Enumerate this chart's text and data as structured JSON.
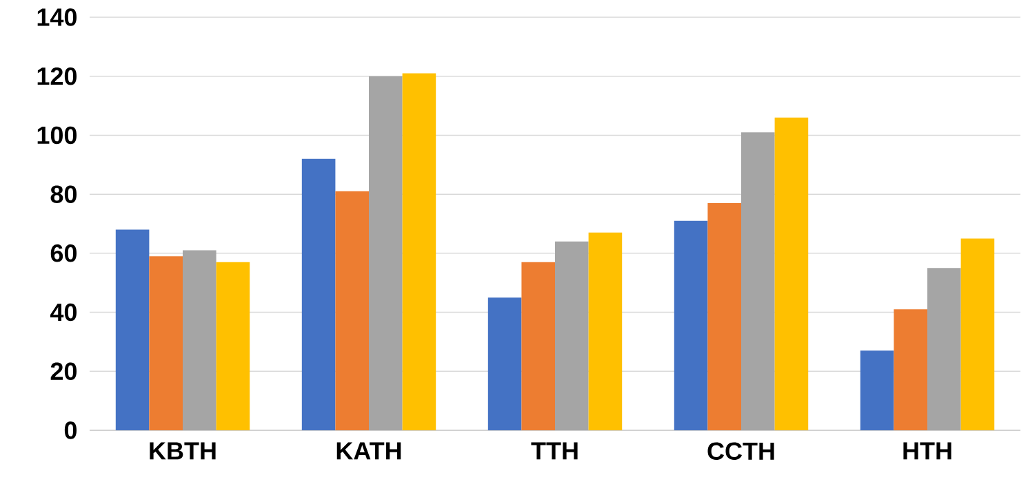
{
  "chart_data": {
    "type": "bar",
    "categories": [
      "KBTH",
      "KATH",
      "TTH",
      "CCTH",
      "HTH"
    ],
    "series": [
      {
        "color": "#4472c4",
        "values": [
          68,
          92,
          45,
          71,
          27
        ]
      },
      {
        "color": "#ed7d31",
        "values": [
          59,
          81,
          57,
          77,
          41
        ]
      },
      {
        "color": "#a5a5a5",
        "values": [
          61,
          120,
          64,
          101,
          55
        ]
      },
      {
        "color": "#ffc000",
        "values": [
          57,
          121,
          67,
          106,
          65
        ]
      }
    ],
    "ylim": [
      0,
      140
    ],
    "yticks": [
      0,
      20,
      40,
      60,
      80,
      100,
      120,
      140
    ],
    "grid": "y"
  }
}
